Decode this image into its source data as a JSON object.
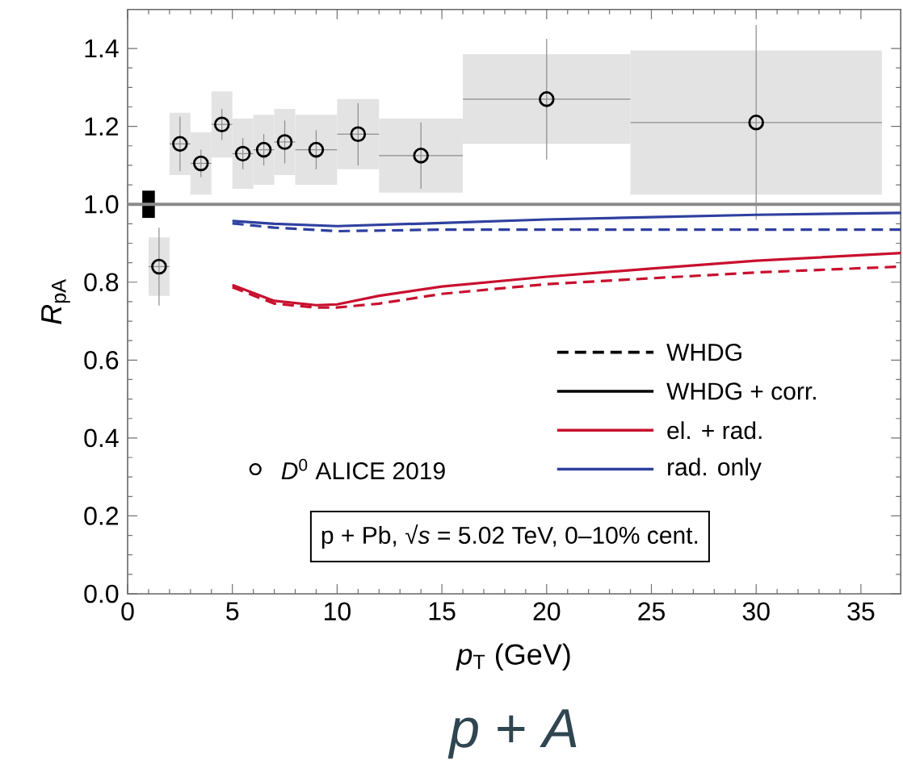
{
  "chart_data": {
    "type": "line",
    "title": "*p* + *A*",
    "xlabel": "*p*$_{T}$ (GeV)",
    "ylabel": "*R*$_{pA}$",
    "xlim": [
      0,
      36.9
    ],
    "ylim": [
      0,
      1.5
    ],
    "xticks": [
      0,
      5,
      10,
      15,
      20,
      25,
      30,
      35
    ],
    "yticks": [
      {
        "value": 0,
        "label": "0.0"
      },
      {
        "value": 0.2,
        "label": "0.2"
      },
      {
        "value": 0.4,
        "label": "0.4"
      },
      {
        "value": 0.6,
        "label": "0.6"
      },
      {
        "value": 0.8,
        "label": "0.8"
      },
      {
        "value": 1.0,
        "label": "1.0"
      },
      {
        "value": 1.2,
        "label": "1.2"
      },
      {
        "value": 1.4,
        "label": "1.4"
      }
    ],
    "legend": "bottom right",
    "annotations": [
      "WHDG",
      "WHDG + corr.",
      "p + Pb, √*s* = 5.02 TeV, 0–10% cent."
    ],
    "ref_lines": [
      {
        "axis": "y",
        "value": 1.0,
        "color": "#8a8a8a"
      }
    ],
    "series": [
      {
        "type": "bar",
        "color": "#e3e3e3",
        "x": [
          1.5,
          2.5,
          3.5,
          4.5,
          5.5,
          6.5,
          7.5,
          9,
          11,
          14,
          20,
          30
        ],
        "base": [
          0.765,
          1.075,
          1.025,
          1.12,
          1.04,
          1.05,
          1.075,
          1.05,
          1.09,
          1.03,
          1.155,
          1.025
        ],
        "values": [
          0.15,
          0.16,
          0.16,
          0.17,
          0.18,
          0.18,
          0.17,
          0.18,
          0.18,
          0.19,
          0.23,
          0.37
        ]
      },
      {
        "type": "bar",
        "color": "#000000",
        "x": [
          1
        ],
        "base": [
          0.965
        ],
        "values": [
          0.07
        ]
      },
      {
        "type": "scatter",
        "name": "*D*$^{0}$ ALICE 2019",
        "color": "#000000",
        "marker": "circle",
        "x": [
          1.5,
          2.5,
          3.5,
          4.5,
          5.5,
          6.5,
          7.5,
          9,
          11,
          14,
          20,
          30
        ],
        "values": [
          0.84,
          1.155,
          1.105,
          1.205,
          1.13,
          1.14,
          1.16,
          1.14,
          1.18,
          1.125,
          1.27,
          1.21
        ],
        "errors": [
          0.1,
          0.07,
          0.035,
          0.04,
          0.04,
          0.04,
          0.055,
          0.05,
          0.08,
          0.085,
          0.155,
          0.25
        ],
        "xerrors": [
          0.5,
          0.5,
          0.5,
          0.5,
          0.5,
          0.5,
          0.5,
          1,
          1,
          2,
          4,
          6
        ]
      },
      {
        "name": "el. + rad.",
        "color": "#c8102e",
        "line_style": "solid",
        "x": [
          5,
          7,
          9,
          10,
          12,
          15,
          20,
          25,
          30,
          36.9
        ],
        "values": [
          0.793,
          0.752,
          0.741,
          0.743,
          0.765,
          0.789,
          0.814,
          0.835,
          0.855,
          0.875
        ]
      },
      {
        "color": "#c8102e",
        "line_style": "dashed",
        "x": [
          5,
          7,
          9,
          10,
          12,
          15,
          20,
          25,
          30,
          36.9
        ],
        "values": [
          0.787,
          0.745,
          0.735,
          0.735,
          0.745,
          0.77,
          0.795,
          0.81,
          0.825,
          0.84
        ]
      },
      {
        "name": "rad. only",
        "color": "#3040a0",
        "line_style": "solid",
        "x": [
          5,
          7,
          10,
          15,
          20,
          25,
          30,
          36.9
        ],
        "values": [
          0.957,
          0.95,
          0.944,
          0.952,
          0.961,
          0.967,
          0.973,
          0.978
        ]
      },
      {
        "color": "#3040a0",
        "line_style": "dashed",
        "x": [
          5,
          7,
          10,
          15,
          20,
          25,
          30,
          36.9
        ],
        "values": [
          0.951,
          0.94,
          0.931,
          0.935,
          0.935,
          0.935,
          0.935,
          0.935
        ]
      }
    ]
  }
}
